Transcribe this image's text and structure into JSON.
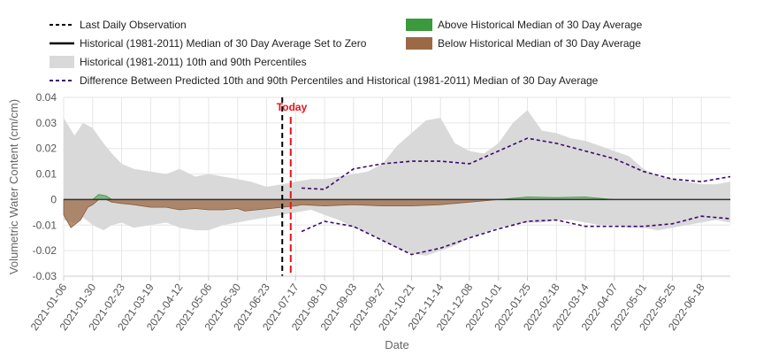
{
  "chart_data": {
    "type": "area",
    "xlabel": "Date",
    "ylabel": "Volumetric Water Content (cm/cm)",
    "ylim": [
      -0.03,
      0.04
    ],
    "xlim": [
      "2021-01-06",
      "2022-07-12"
    ],
    "y_ticks": [
      "0.04",
      "0.03",
      "0.02",
      "0.01",
      "0",
      "-0.01",
      "-0.02",
      "-0.03"
    ],
    "y_tick_values": [
      0.04,
      0.03,
      0.02,
      0.01,
      0,
      -0.01,
      -0.02,
      -0.03
    ],
    "x_ticks": [
      "2021-01-06",
      "2021-01-30",
      "2021-02-23",
      "2021-03-19",
      "2021-04-12",
      "2021-05-06",
      "2021-05-30",
      "2021-06-23",
      "2021-07-17",
      "2021-08-10",
      "2021-09-03",
      "2021-09-27",
      "2021-10-21",
      "2021-11-14",
      "2021-12-08",
      "2022-01-01",
      "2022-01-25",
      "2022-02-18",
      "2022-03-14",
      "2022-04-07",
      "2022-05-01",
      "2022-05-25",
      "2022-06-18"
    ],
    "grid": true,
    "legend_position": "top",
    "legend": [
      {
        "label": "Last Daily Observation",
        "kind": "dash-line",
        "color": "#000000"
      },
      {
        "label": "Historical (1981-2011) Median of 30 Day Average Set to Zero",
        "kind": "solid-line",
        "color": "#000000"
      },
      {
        "label": "Historical (1981-2011) 10th and 90th Percentiles",
        "kind": "band",
        "color": "#d9d9d9"
      },
      {
        "label": "Difference Between Predicted 10th and 90th Percentiles and Historical (1981-2011) Median of 30 Day Average",
        "kind": "dash-line",
        "color": "#3d0a6e"
      },
      {
        "label": "Above Historical Median of 30 Day Average",
        "kind": "swatch",
        "color": "#3a9a3d"
      },
      {
        "label": "Below Historical Median of 30 Day Average",
        "kind": "swatch",
        "color": "#9b6a45"
      }
    ],
    "markers": {
      "last_observation": {
        "date": "2021-07-06",
        "color": "#000000"
      },
      "today": {
        "date": "2021-07-13",
        "label": "Today",
        "color": "#e8141b"
      }
    },
    "percentile_band": {
      "dates": [
        "2021-01-06",
        "2021-01-15",
        "2021-01-22",
        "2021-01-30",
        "2021-02-08",
        "2021-02-15",
        "2021-02-23",
        "2021-03-05",
        "2021-03-19",
        "2021-04-01",
        "2021-04-12",
        "2021-04-25",
        "2021-05-06",
        "2021-05-18",
        "2021-05-30",
        "2021-06-10",
        "2021-06-23",
        "2021-07-06",
        "2021-07-17",
        "2021-07-30",
        "2021-08-10",
        "2021-08-22",
        "2021-09-03",
        "2021-09-15",
        "2021-09-27",
        "2021-10-09",
        "2021-10-21",
        "2021-11-02",
        "2021-11-14",
        "2021-11-26",
        "2021-12-08",
        "2021-12-20",
        "2022-01-01",
        "2022-01-13",
        "2022-01-25",
        "2022-02-06",
        "2022-02-18",
        "2022-03-02",
        "2022-03-14",
        "2022-03-26",
        "2022-04-07",
        "2022-04-19",
        "2022-05-01",
        "2022-05-13",
        "2022-05-25",
        "2022-06-06",
        "2022-06-18",
        "2022-06-30",
        "2022-07-12"
      ],
      "p90": [
        0.032,
        0.025,
        0.03,
        0.028,
        0.022,
        0.018,
        0.014,
        0.012,
        0.011,
        0.01,
        0.012,
        0.009,
        0.01,
        0.009,
        0.008,
        0.007,
        0.005,
        0.006,
        0.007,
        0.008,
        0.008,
        0.009,
        0.01,
        0.011,
        0.014,
        0.021,
        0.026,
        0.031,
        0.032,
        0.022,
        0.019,
        0.018,
        0.022,
        0.03,
        0.035,
        0.027,
        0.026,
        0.024,
        0.023,
        0.021,
        0.019,
        0.017,
        0.012,
        0.009,
        0.008,
        0.007,
        0.006,
        0.006,
        0.007
      ],
      "p10": [
        -0.008,
        -0.009,
        -0.007,
        -0.01,
        -0.012,
        -0.01,
        -0.009,
        -0.011,
        -0.01,
        -0.009,
        -0.011,
        -0.012,
        -0.012,
        -0.01,
        -0.009,
        -0.008,
        -0.007,
        -0.006,
        -0.005,
        -0.004,
        -0.006,
        -0.008,
        -0.011,
        -0.013,
        -0.016,
        -0.019,
        -0.021,
        -0.022,
        -0.02,
        -0.018,
        -0.015,
        -0.013,
        -0.011,
        -0.01,
        -0.009,
        -0.009,
        -0.008,
        -0.008,
        -0.009,
        -0.01,
        -0.01,
        -0.011,
        -0.011,
        -0.012,
        -0.011,
        -0.01,
        -0.009,
        -0.008,
        -0.009
      ]
    },
    "anomaly": {
      "dates": [
        "2021-01-06",
        "2021-01-12",
        "2021-01-20",
        "2021-01-26",
        "2021-01-30",
        "2021-02-04",
        "2021-02-10",
        "2021-02-15",
        "2021-02-23",
        "2021-03-05",
        "2021-03-19",
        "2021-04-01",
        "2021-04-12",
        "2021-04-25",
        "2021-05-06",
        "2021-05-18",
        "2021-05-30",
        "2021-06-05",
        "2021-07-17",
        "2021-07-22",
        "2021-08-10",
        "2021-09-03",
        "2021-09-27",
        "2021-10-21",
        "2021-11-14",
        "2021-12-08",
        "2022-01-01",
        "2022-01-25",
        "2022-02-18",
        "2022-03-14",
        "2022-03-26",
        "2022-04-07"
      ],
      "values": [
        -0.006,
        -0.011,
        -0.008,
        -0.003,
        -0.002,
        0.002,
        0.0015,
        -0.001,
        -0.0015,
        -0.002,
        -0.003,
        -0.003,
        -0.004,
        -0.0035,
        -0.004,
        -0.004,
        -0.0035,
        -0.0045,
        -0.0025,
        -0.002,
        -0.0025,
        -0.002,
        -0.0025,
        -0.0025,
        -0.002,
        -0.001,
        0.0,
        0.001,
        0.0008,
        0.001,
        0.0005,
        0.0
      ]
    },
    "predicted_p90": {
      "dates": [
        "2021-07-22",
        "2021-08-10",
        "2021-09-03",
        "2021-09-27",
        "2021-10-21",
        "2021-11-14",
        "2021-12-08",
        "2022-01-01",
        "2022-01-25",
        "2022-02-18",
        "2022-03-14",
        "2022-04-07",
        "2022-05-01",
        "2022-05-25",
        "2022-06-18",
        "2022-07-12"
      ],
      "values": [
        0.0045,
        0.004,
        0.012,
        0.014,
        0.015,
        0.015,
        0.014,
        0.019,
        0.024,
        0.022,
        0.019,
        0.016,
        0.011,
        0.008,
        0.007,
        0.009
      ]
    },
    "predicted_p10": {
      "dates": [
        "2021-07-22",
        "2021-08-10",
        "2021-09-03",
        "2021-09-27",
        "2021-10-21",
        "2021-11-14",
        "2021-12-08",
        "2022-01-01",
        "2022-01-25",
        "2022-02-18",
        "2022-03-14",
        "2022-04-07",
        "2022-05-01",
        "2022-05-25",
        "2022-06-18",
        "2022-07-12"
      ],
      "values": [
        -0.0125,
        -0.0085,
        -0.0105,
        -0.016,
        -0.0215,
        -0.019,
        -0.015,
        -0.0115,
        -0.0085,
        -0.008,
        -0.0105,
        -0.0105,
        -0.0105,
        -0.0095,
        -0.0065,
        -0.0075
      ]
    }
  }
}
